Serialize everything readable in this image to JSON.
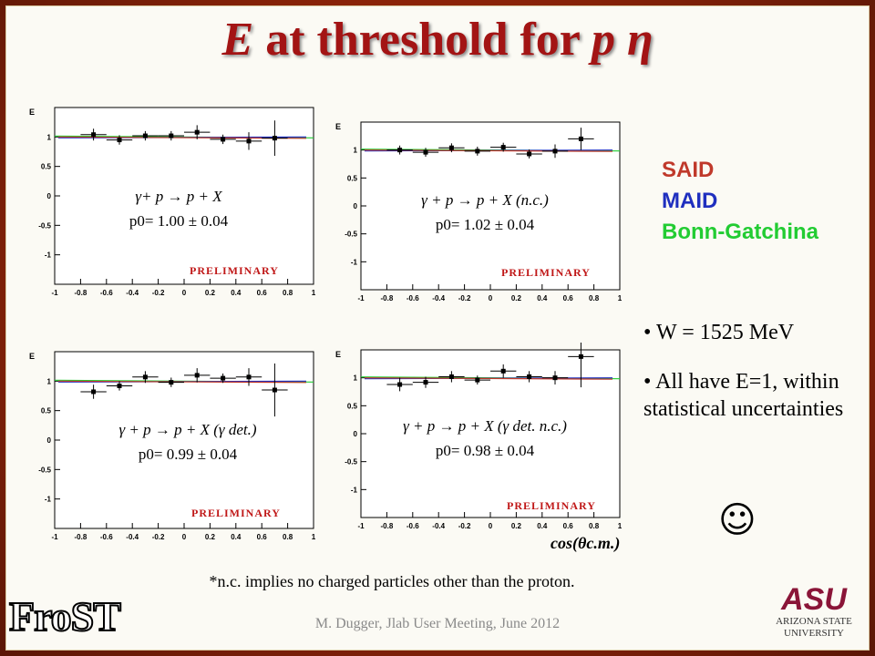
{
  "slide": {
    "title_e": "E",
    "title_mid": " at threshold for ",
    "title_end": "p η",
    "legend": {
      "said": "SAID",
      "maid": "MAID",
      "bonn": "Bonn-Gatchina"
    },
    "notes": {
      "w_value": "W = 1525 MeV",
      "e_have": "All have E=1, within statistical uncertainties"
    },
    "x_axis_label": "cos(θc.m.)",
    "footnote": "*n.c. implies no charged particles other than the proton.",
    "credit": "M. Dugger, Jlab User Meeting, June 2012",
    "logo_left": "FroST",
    "logo_right_mark": "ASU",
    "logo_right_text": "ARIZONA STATE UNIVERSITY",
    "smiley": "☺",
    "colors": {
      "title": "#a31414",
      "said": "#c0392b",
      "maid": "#1f2fbf",
      "bonn": "#22cc33"
    }
  },
  "chart_data": [
    {
      "type": "scatter",
      "reaction": "γ+ p → p + X",
      "fit": "p0= 1.00 ± 0.04",
      "watermark": "PRELIMINARY",
      "ylabel": "E",
      "xlim": [
        -1,
        1
      ],
      "ylim": [
        -1.5,
        1.5
      ],
      "x_ticks": [
        "-1",
        "-0.8",
        "-0.6",
        "-0.4",
        "-0.2",
        "0",
        "0.2",
        "0.4",
        "0.6",
        "0.8",
        "1"
      ],
      "y_ticks": [
        "1",
        "0.5",
        "0",
        "-0.5",
        "-1"
      ],
      "points": [
        {
          "x": -0.7,
          "y": 1.04,
          "err": 0.1
        },
        {
          "x": -0.5,
          "y": 0.95,
          "err": 0.08
        },
        {
          "x": -0.3,
          "y": 1.02,
          "err": 0.08
        },
        {
          "x": -0.1,
          "y": 1.02,
          "err": 0.08
        },
        {
          "x": 0.1,
          "y": 1.08,
          "err": 0.12
        },
        {
          "x": 0.3,
          "y": 0.96,
          "err": 0.08
        },
        {
          "x": 0.5,
          "y": 0.93,
          "err": 0.15
        },
        {
          "x": 0.7,
          "y": 0.98,
          "err": 0.3
        }
      ]
    },
    {
      "type": "scatter",
      "reaction": "γ + p → p + X (n.c.)",
      "fit": "p0= 1.02 ± 0.04",
      "watermark": "PRELIMINARY",
      "ylabel": "E",
      "xlim": [
        -1,
        1
      ],
      "ylim": [
        -1.5,
        1.5
      ],
      "x_ticks": [
        "-1",
        "-0.8",
        "-0.6",
        "-0.4",
        "-0.2",
        "0",
        "0.2",
        "0.4",
        "0.6",
        "0.8",
        "1"
      ],
      "y_ticks": [
        "1",
        "0.5",
        "0",
        "-0.5",
        "-1"
      ],
      "points": [
        {
          "x": -0.7,
          "y": 1.0,
          "err": 0.08
        },
        {
          "x": -0.5,
          "y": 0.96,
          "err": 0.08
        },
        {
          "x": -0.3,
          "y": 1.04,
          "err": 0.08
        },
        {
          "x": -0.1,
          "y": 0.98,
          "err": 0.08
        },
        {
          "x": 0.1,
          "y": 1.05,
          "err": 0.08
        },
        {
          "x": 0.3,
          "y": 0.93,
          "err": 0.08
        },
        {
          "x": 0.5,
          "y": 0.98,
          "err": 0.12
        },
        {
          "x": 0.7,
          "y": 1.2,
          "err": 0.2
        }
      ]
    },
    {
      "type": "scatter",
      "reaction": "γ + p → p + X (γ det.)",
      "fit": "p0= 0.99 ± 0.04",
      "watermark": "PRELIMINARY",
      "ylabel": "E",
      "xlim": [
        -1,
        1
      ],
      "ylim": [
        -1.5,
        1.5
      ],
      "x_ticks": [
        "-1",
        "-0.8",
        "-0.6",
        "-0.4",
        "-0.2",
        "0",
        "0.2",
        "0.4",
        "0.6",
        "0.8",
        "1"
      ],
      "y_ticks": [
        "1",
        "0.5",
        "0",
        "-0.5",
        "-1"
      ],
      "points": [
        {
          "x": -0.7,
          "y": 0.82,
          "err": 0.12
        },
        {
          "x": -0.5,
          "y": 0.92,
          "err": 0.08
        },
        {
          "x": -0.3,
          "y": 1.07,
          "err": 0.1
        },
        {
          "x": -0.1,
          "y": 0.98,
          "err": 0.08
        },
        {
          "x": 0.1,
          "y": 1.1,
          "err": 0.12
        },
        {
          "x": 0.3,
          "y": 1.05,
          "err": 0.08
        },
        {
          "x": 0.5,
          "y": 1.07,
          "err": 0.15
        },
        {
          "x": 0.7,
          "y": 0.85,
          "err": 0.45
        }
      ]
    },
    {
      "type": "scatter",
      "reaction": "γ + p → p + X (γ det. n.c.)",
      "fit": "p0= 0.98 ± 0.04",
      "watermark": "PRELIMINARY",
      "ylabel": "E",
      "xlim": [
        -1,
        1
      ],
      "ylim": [
        -1.5,
        1.5
      ],
      "x_ticks": [
        "-1",
        "-0.8",
        "-0.6",
        "-0.4",
        "-0.2",
        "0",
        "0.2",
        "0.4",
        "0.6",
        "0.8",
        "1"
      ],
      "y_ticks": [
        "1",
        "0.5",
        "0",
        "-0.5",
        "-1"
      ],
      "points": [
        {
          "x": -0.7,
          "y": 0.88,
          "err": 0.12
        },
        {
          "x": -0.5,
          "y": 0.92,
          "err": 0.1
        },
        {
          "x": -0.3,
          "y": 1.02,
          "err": 0.1
        },
        {
          "x": -0.1,
          "y": 0.96,
          "err": 0.08
        },
        {
          "x": 0.1,
          "y": 1.12,
          "err": 0.12
        },
        {
          "x": 0.3,
          "y": 1.02,
          "err": 0.1
        },
        {
          "x": 0.5,
          "y": 1.0,
          "err": 0.12
        },
        {
          "x": 0.7,
          "y": 1.38,
          "err": 0.55
        }
      ]
    }
  ]
}
